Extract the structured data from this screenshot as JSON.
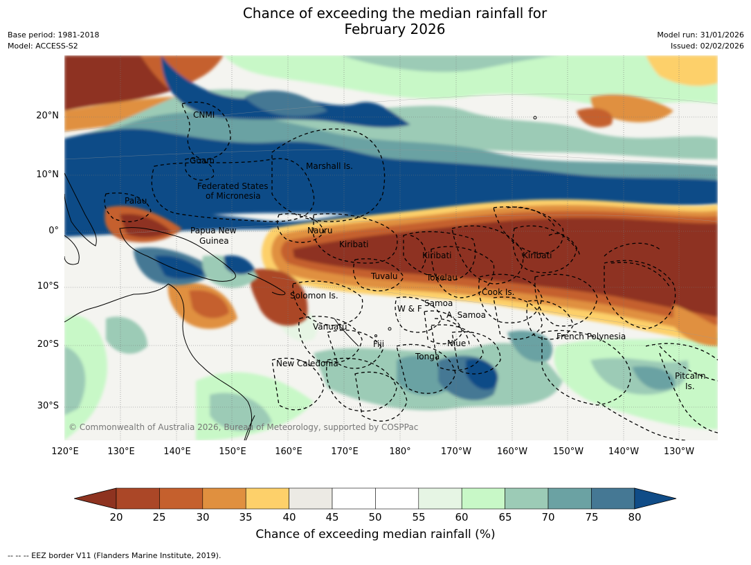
{
  "header": {
    "title_line1": "Chance of exceeding the median rainfall for",
    "title_line2": "February 2026",
    "base_period": "Base period: 1981-2018",
    "model": "Model: ACCESS-S2",
    "model_run": "Model run: 31/01/2026",
    "issued": "Issued: 02/02/2026"
  },
  "map": {
    "lat_labels": [
      "20°N",
      "10°N",
      "0°",
      "10°S",
      "20°S",
      "30°S"
    ],
    "lon_labels": [
      "120°E",
      "130°E",
      "140°E",
      "150°E",
      "160°E",
      "170°E",
      "180°",
      "170°W",
      "160°W",
      "150°W",
      "140°W",
      "130°W"
    ],
    "places": {
      "cnmi": "CNMI",
      "guam": "Guam",
      "marshall": "Marshall Is.",
      "fsm_1": "Federated States",
      "fsm_2": "of Micronesia",
      "palau": "Palau",
      "png_1": "Papua New",
      "png_2": "Guinea",
      "nauru": "Nauru",
      "kiribati_w": "Kiribati",
      "kiribati_c": "Kiribati",
      "kiribati_e": "Kiribati",
      "tuvalu": "Tuvalu",
      "tokelau": "Tokelau",
      "solomon": "Solomon Is.",
      "samoa": "Samoa",
      "wf": "W & F",
      "asamoa": "A. Samoa",
      "cook": "Cook Is.",
      "vanuatu": "Vanuatu",
      "fiji": "Fiji",
      "niue": "Niue",
      "tonga": "Tonga",
      "french_poly": "French Polynesia",
      "new_caledonia": "New Caledonia",
      "pitcairn_1": "Pitcairn",
      "pitcairn_2": "Is."
    },
    "copyright": "© Commonwealth of Australia 2026, Bureau of Meteorology, supported by COSPPac"
  },
  "colorbar": {
    "ticks": [
      "20",
      "25",
      "30",
      "35",
      "40",
      "45",
      "50",
      "55",
      "60",
      "65",
      "70",
      "75",
      "80"
    ],
    "colors": [
      "#8e3320",
      "#ab4727",
      "#c5602d",
      "#e0903f",
      "#fdd06a",
      "#eceae4",
      "#ffffff",
      "#ffffff",
      "#e6f5e4",
      "#c8f8c7",
      "#9ccbb6",
      "#6ba2a3",
      "#457894",
      "#104c87"
    ],
    "label": "Chance of exceeding median rainfall (%)"
  },
  "footer": "--  --  -- EEZ border V11 (Flanders Marine Institute, 2019)."
}
